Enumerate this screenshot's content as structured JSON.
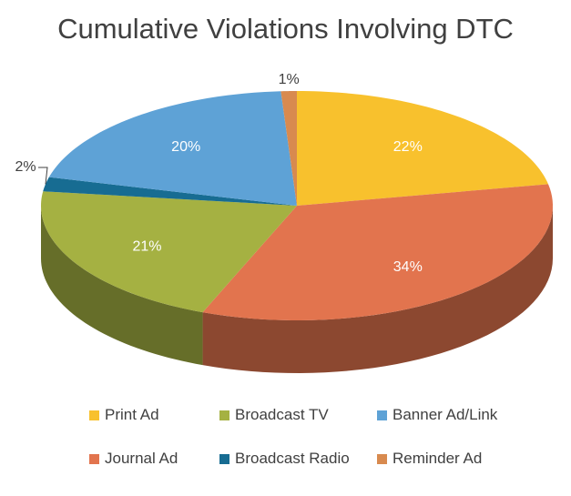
{
  "chart_data": {
    "type": "pie",
    "title": "Cumulative Violations Involving DTC",
    "slices": [
      {
        "label": "Print Ad",
        "value": 22,
        "text": "22%",
        "color": "#F8C12D"
      },
      {
        "label": "Journal Ad",
        "value": 34,
        "text": "34%",
        "color": "#E2744E"
      },
      {
        "label": "Broadcast TV",
        "value": 21,
        "text": "21%",
        "color": "#A5B142"
      },
      {
        "label": "Broadcast Radio",
        "value": 2,
        "text": "2%",
        "color": "#176C92"
      },
      {
        "label": "Banner Ad/Link",
        "value": 20,
        "text": "20%",
        "color": "#5EA2D6"
      },
      {
        "label": "Reminder Ad",
        "value": 1,
        "text": "1%",
        "color": "#D88A4F"
      }
    ],
    "legend_position": "bottom",
    "legend_order": [
      "Print Ad",
      "Broadcast TV",
      "Banner Ad/Link",
      "Journal Ad",
      "Broadcast Radio",
      "Reminder Ad"
    ]
  }
}
